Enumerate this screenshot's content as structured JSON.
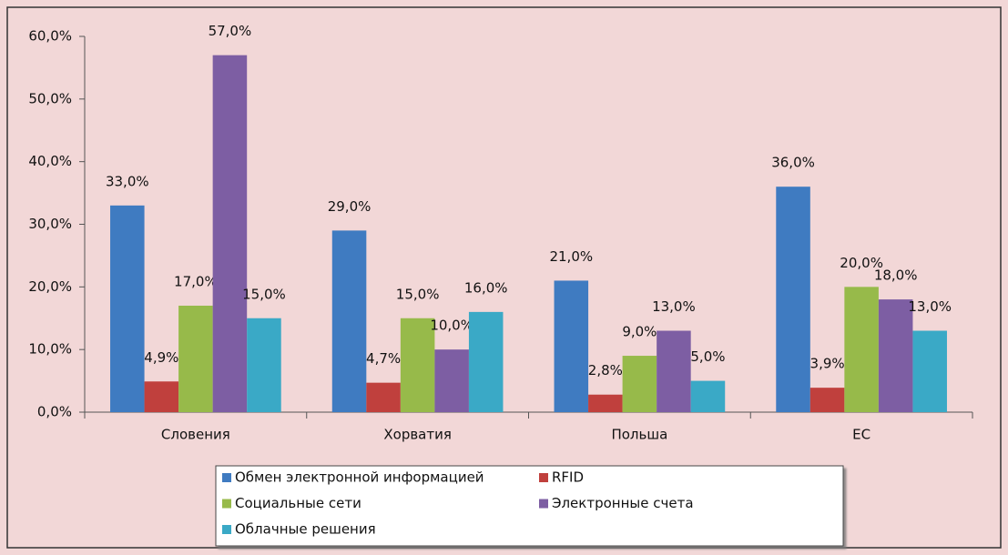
{
  "chart_data": {
    "type": "bar",
    "categories": [
      "Словения",
      "Хорватия",
      "Польша",
      "ЕС"
    ],
    "series": [
      {
        "name": "Обмен электронной информацией",
        "color": "#3f7bc1",
        "values": [
          33.0,
          29.0,
          21.0,
          36.0
        ],
        "value_labels": [
          "33,0%",
          "29,0%",
          "21,0%",
          "36,0%"
        ]
      },
      {
        "name": "RFID",
        "color": "#c0403d",
        "values": [
          4.9,
          4.7,
          2.8,
          3.9
        ],
        "value_labels": [
          "4,9%",
          "4,7%",
          "2,8%",
          "3,9%"
        ]
      },
      {
        "name": "Социальные сети",
        "color": "#97ba4a",
        "values": [
          17.0,
          15.0,
          9.0,
          20.0
        ],
        "value_labels": [
          "17,0%",
          "15,0%",
          "9,0%",
          "20,0%"
        ]
      },
      {
        "name": "Электронные счета",
        "color": "#7d5ea3",
        "values": [
          57.0,
          10.0,
          13.0,
          18.0
        ],
        "value_labels": [
          "57,0%",
          "10,0%",
          "13,0%",
          "18,0%"
        ]
      },
      {
        "name": "Облачные решения",
        "color": "#3aa9c6",
        "values": [
          15.0,
          16.0,
          5.0,
          13.0
        ],
        "value_labels": [
          "15,0%",
          "16,0%",
          "5,0%",
          "13,0%"
        ]
      }
    ],
    "ylim": [
      0,
      60
    ],
    "yticks": [
      {
        "value": 0,
        "label": "0,0%"
      },
      {
        "value": 10,
        "label": "10,0%"
      },
      {
        "value": 20,
        "label": "20,0%"
      },
      {
        "value": 30,
        "label": "30,0%"
      },
      {
        "value": 40,
        "label": "40,0%"
      },
      {
        "value": 50,
        "label": "50,0%"
      },
      {
        "value": 60,
        "label": "60,0%"
      }
    ],
    "legend": "bottom"
  }
}
